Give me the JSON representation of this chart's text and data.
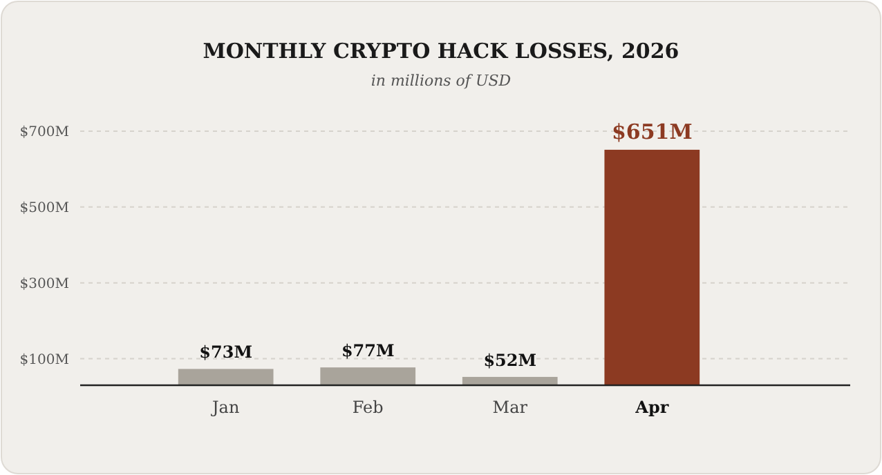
{
  "chart_data": {
    "type": "bar",
    "title": "MONTHLY CRYPTO HACK LOSSES, 2026",
    "subtitle": "in millions of USD",
    "categories": [
      "Jan",
      "Feb",
      "Mar",
      "Apr"
    ],
    "values": [
      73,
      77,
      52,
      651
    ],
    "colors": [
      "#a9a49b",
      "#a9a49b",
      "#a9a49b",
      "#8c3a22"
    ],
    "value_labels": [
      "$73M",
      "$77M",
      "$52M",
      "$651M"
    ],
    "ylim": [
      30,
      700
    ],
    "yticks": [
      {
        "value": 100,
        "label": "$100M"
      },
      {
        "value": 300,
        "label": "$300M"
      },
      {
        "value": 500,
        "label": "$500M"
      },
      {
        "value": 700,
        "label": "$700M"
      }
    ],
    "grid": "y"
  }
}
